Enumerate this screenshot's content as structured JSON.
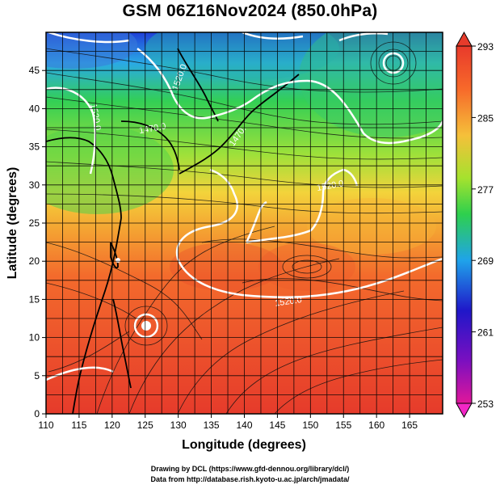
{
  "title": "GSM 06Z16Nov2024 (850.0hPa)",
  "map": {
    "xlabel": "Longitude (degrees)",
    "ylabel": "Latitude  (degrees)",
    "lon_range": [
      110,
      170
    ],
    "lat_range": [
      0,
      50
    ],
    "lon_ticks": [
      "110",
      "115",
      "120",
      "125",
      "130",
      "135",
      "140",
      "145",
      "150",
      "155",
      "160",
      "165"
    ],
    "lat_ticks": [
      "0",
      "5",
      "10",
      "15",
      "20",
      "25",
      "30",
      "35",
      "40",
      "45"
    ],
    "contour_labels": [
      "1520.0",
      "1520.0",
      "1520.0",
      "1520.0"
    ],
    "contour_labels_partial": [
      "1470.0",
      "1470."
    ],
    "grid": true
  },
  "colorbar": {
    "ticks": [
      "293",
      "285",
      "277",
      "269",
      "261",
      "253"
    ],
    "min": 253,
    "max": 293,
    "colors": [
      "#e0179a",
      "#7a0fc0",
      "#1f17c9",
      "#1fa3ea",
      "#2ed04d",
      "#a5e22e",
      "#f5c03a",
      "#f7692a",
      "#e83a2b"
    ]
  },
  "credits": {
    "line1": "Drawing by DCL (https://www.gfd-dennou.org/library/dcl/)",
    "line2": "Data from http://database.rish.kyoto-u.ac.jp/arch/jmadata/"
  }
}
